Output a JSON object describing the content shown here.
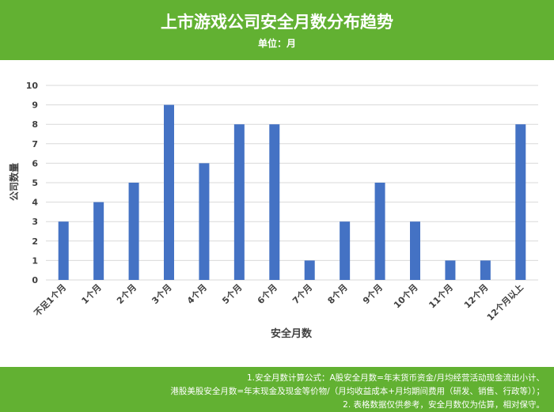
{
  "header": {
    "title": "上市游戏公司安全月数分布趋势",
    "subtitle": "单位：月"
  },
  "chart_data": {
    "type": "bar",
    "categories": [
      "不足1个月",
      "1个月",
      "2个月",
      "3个月",
      "4个月",
      "5个月",
      "6个月",
      "7个月",
      "8个月",
      "9个月",
      "10个月",
      "11个月",
      "12个月",
      "12个月以上"
    ],
    "series": [
      {
        "values": [
          3,
          4,
          5,
          9,
          6,
          8,
          8,
          1,
          3,
          5,
          3,
          1,
          1,
          8
        ]
      }
    ],
    "xlabel": "安全月数",
    "ylabel": "公司数量",
    "ylim": [
      0,
      10
    ],
    "yticks": [
      0,
      1,
      2,
      3,
      4,
      5,
      6,
      7,
      8,
      9,
      10
    ],
    "grid": true,
    "bar_color": "#4472c4"
  },
  "footer": {
    "note1": "1.安全月数计算公式：A股安全月数=年末货币资金/月均经营活动现金流出小计、",
    "note2": "港股美股安全月数=年末现金及现金等价物/（月均收益成本+月均期间费用（研发、销售、行政等））；",
    "note3": "2. 表格数据仅供参考，安全月数仅为估算，相对保守。"
  },
  "colors": {
    "header_bg": "#62b132",
    "footer_bg": "#62b132",
    "bar": "#4472c4",
    "grid": "#d9d9d9",
    "axis_text": "#404040"
  }
}
